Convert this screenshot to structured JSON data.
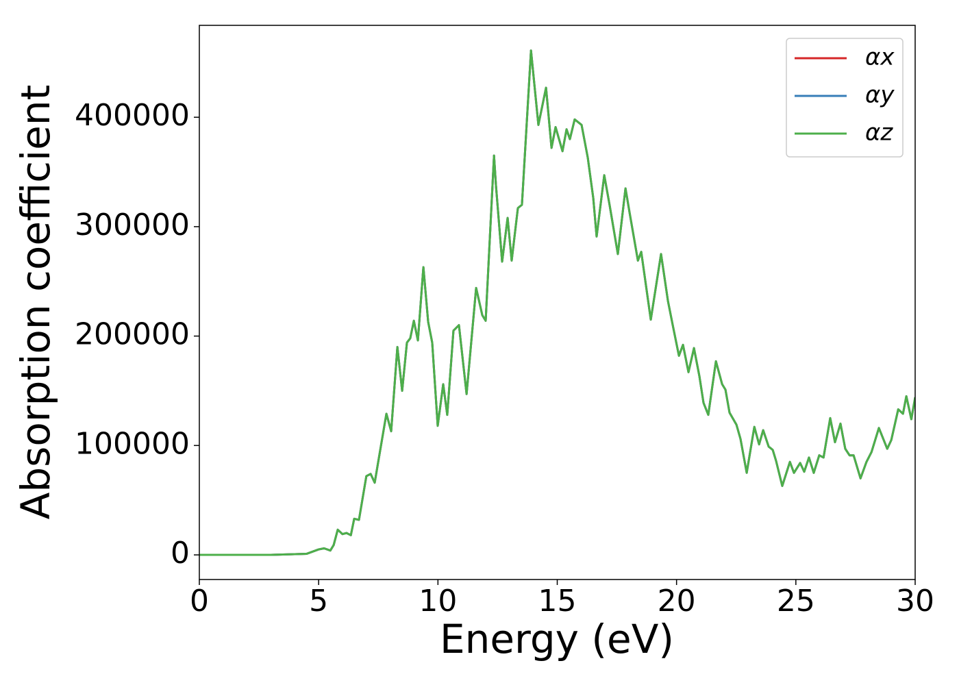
{
  "chart_data": {
    "type": "line",
    "xlabel": "Energy (eV)",
    "ylabel": "Absorption coefficient",
    "x": [
      0,
      3,
      4.5,
      5.0,
      5.23,
      5.49,
      5.63,
      5.8,
      6.0,
      6.17,
      6.35,
      6.49,
      6.69,
      7.0,
      7.18,
      7.35,
      7.52,
      7.84,
      8.04,
      8.3,
      8.5,
      8.7,
      8.84,
      8.99,
      9.16,
      9.39,
      9.59,
      9.76,
      9.99,
      10.22,
      10.39,
      10.65,
      10.88,
      11.2,
      11.6,
      11.86,
      12.0,
      12.35,
      12.43,
      12.69,
      12.92,
      13.09,
      13.35,
      13.52,
      13.9,
      14.21,
      14.53,
      14.76,
      14.93,
      15.22,
      15.39,
      15.53,
      15.73,
      16.02,
      16.28,
      16.51,
      16.65,
      16.97,
      17.2,
      17.54,
      17.86,
      18.03,
      18.38,
      18.52,
      18.92,
      19.35,
      19.64,
      19.84,
      20.1,
      20.27,
      20.5,
      20.73,
      20.96,
      21.13,
      21.33,
      21.65,
      21.91,
      22.05,
      22.22,
      22.51,
      22.68,
      22.94,
      23.26,
      23.46,
      23.63,
      23.86,
      24.03,
      24.17,
      24.43,
      24.75,
      24.92,
      25.18,
      25.35,
      25.55,
      25.75,
      25.98,
      26.16,
      26.44,
      26.64,
      26.87,
      27.07,
      27.25,
      27.42,
      27.71,
      27.96,
      28.17,
      28.48,
      28.83,
      29.0,
      29.29,
      29.49,
      29.63,
      29.84,
      30.0
    ],
    "series": [
      {
        "name": "αx",
        "color": "#d62728",
        "values": [
          0,
          0,
          1000,
          5000,
          6000,
          4000,
          9000,
          23000,
          19000,
          20000,
          18000,
          33000,
          32000,
          72000,
          74000,
          66000,
          88000,
          129000,
          113000,
          190000,
          150000,
          194000,
          198000,
          214000,
          196000,
          263000,
          213000,
          194000,
          118000,
          156000,
          128000,
          205000,
          210000,
          147000,
          244000,
          219000,
          214000,
          365000,
          338000,
          268000,
          308000,
          269000,
          317000,
          320000,
          461000,
          393000,
          427000,
          372000,
          391000,
          369000,
          389000,
          380000,
          398000,
          393000,
          363000,
          326000,
          291000,
          347000,
          319000,
          275000,
          335000,
          313000,
          269000,
          277000,
          215000,
          275000,
          232000,
          210000,
          182000,
          192000,
          167000,
          189000,
          163000,
          139000,
          128000,
          177000,
          156000,
          151000,
          130000,
          119000,
          106000,
          75000,
          117000,
          101000,
          114000,
          99000,
          96000,
          86000,
          63000,
          85000,
          75000,
          84000,
          76000,
          89000,
          75000,
          91000,
          89000,
          125000,
          103000,
          120000,
          97000,
          91000,
          91000,
          70000,
          85000,
          94000,
          116000,
          97000,
          105000,
          133000,
          129000,
          145000,
          124000,
          144000
        ]
      },
      {
        "name": "αy",
        "color": "#377eb8",
        "values": [
          0,
          0,
          1000,
          5000,
          6000,
          4000,
          9000,
          23000,
          19000,
          20000,
          18000,
          33000,
          32000,
          72000,
          74000,
          66000,
          88000,
          129000,
          113000,
          190000,
          150000,
          194000,
          198000,
          214000,
          196000,
          263000,
          213000,
          194000,
          118000,
          156000,
          128000,
          205000,
          210000,
          147000,
          244000,
          219000,
          214000,
          365000,
          338000,
          268000,
          308000,
          269000,
          317000,
          320000,
          461000,
          393000,
          427000,
          372000,
          391000,
          369000,
          389000,
          380000,
          398000,
          393000,
          363000,
          326000,
          291000,
          347000,
          319000,
          275000,
          335000,
          313000,
          269000,
          277000,
          215000,
          275000,
          232000,
          210000,
          182000,
          192000,
          167000,
          189000,
          163000,
          139000,
          128000,
          177000,
          156000,
          151000,
          130000,
          119000,
          106000,
          75000,
          117000,
          101000,
          114000,
          99000,
          96000,
          86000,
          63000,
          85000,
          75000,
          84000,
          76000,
          89000,
          75000,
          91000,
          89000,
          125000,
          103000,
          120000,
          97000,
          91000,
          91000,
          70000,
          85000,
          94000,
          116000,
          97000,
          105000,
          133000,
          129000,
          145000,
          124000,
          144000
        ]
      },
      {
        "name": "αz",
        "color": "#4daf4a",
        "values": [
          0,
          0,
          1000,
          5000,
          6000,
          4000,
          9000,
          23000,
          19000,
          20000,
          18000,
          33000,
          32000,
          72000,
          74000,
          66000,
          88000,
          129000,
          113000,
          190000,
          150000,
          194000,
          198000,
          214000,
          196000,
          263000,
          213000,
          194000,
          118000,
          156000,
          128000,
          205000,
          210000,
          147000,
          244000,
          219000,
          214000,
          365000,
          338000,
          268000,
          308000,
          269000,
          317000,
          320000,
          461000,
          393000,
          427000,
          372000,
          391000,
          369000,
          389000,
          380000,
          398000,
          393000,
          363000,
          326000,
          291000,
          347000,
          319000,
          275000,
          335000,
          313000,
          269000,
          277000,
          215000,
          275000,
          232000,
          210000,
          182000,
          192000,
          167000,
          189000,
          163000,
          139000,
          128000,
          177000,
          156000,
          151000,
          130000,
          119000,
          106000,
          75000,
          117000,
          101000,
          114000,
          99000,
          96000,
          86000,
          63000,
          85000,
          75000,
          84000,
          76000,
          89000,
          75000,
          91000,
          89000,
          125000,
          103000,
          120000,
          97000,
          91000,
          91000,
          70000,
          85000,
          94000,
          116000,
          97000,
          105000,
          133000,
          129000,
          145000,
          124000,
          144000
        ]
      }
    ],
    "xlim": [
      0,
      30
    ],
    "xticks": [
      0,
      5,
      10,
      15,
      20,
      25,
      30
    ],
    "ylim": [
      -22500,
      484000
    ],
    "yticks": [
      0,
      100000,
      200000,
      300000,
      400000
    ],
    "legend": "upper right"
  }
}
